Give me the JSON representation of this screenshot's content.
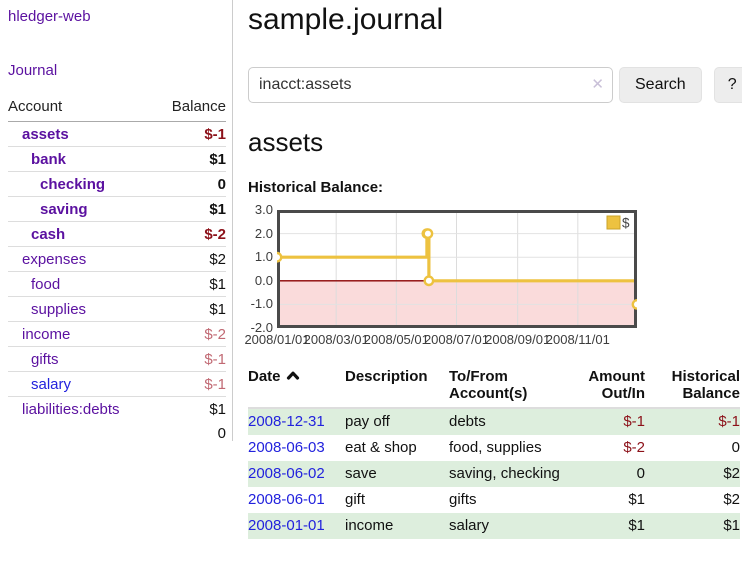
{
  "app": {
    "brand": "hledger-web"
  },
  "sidebar": {
    "journal_link": "Journal",
    "table": {
      "headers": [
        "Account",
        "Balance"
      ],
      "rows": [
        {
          "name": "assets",
          "level": 1,
          "bold": true,
          "balance": "$-1"
        },
        {
          "name": "bank",
          "level": 2,
          "bold": true,
          "balance": "$1"
        },
        {
          "name": "checking",
          "level": 3,
          "bold": true,
          "balance": "0"
        },
        {
          "name": "saving",
          "level": 3,
          "bold": true,
          "balance": "$1"
        },
        {
          "name": "cash",
          "level": 2,
          "bold": true,
          "balance": "$-2"
        },
        {
          "name": "expenses",
          "level": 1,
          "bold": false,
          "balance": "$2"
        },
        {
          "name": "food",
          "level": 2,
          "bold": false,
          "balance": "$1"
        },
        {
          "name": "supplies",
          "level": 2,
          "bold": false,
          "balance": "$1"
        },
        {
          "name": "income",
          "level": 1,
          "bold": false,
          "balance": "$-2"
        },
        {
          "name": "gifts",
          "level": 2,
          "bold": false,
          "balance": "$-1"
        },
        {
          "name": "salary",
          "level": 2,
          "bold": false,
          "balance": "$-1",
          "link": "unvisited"
        },
        {
          "name": "liabilities:debts",
          "level": 1,
          "bold": false,
          "balance": "$1"
        }
      ],
      "total": "0"
    }
  },
  "header": {
    "title": "sample.journal"
  },
  "search": {
    "value": "inacct:assets",
    "clear_icon": "✕",
    "button_label": "Search",
    "help_label": "?"
  },
  "account_page": {
    "title": "assets",
    "chart_label": "Historical Balance:"
  },
  "chart_data": {
    "type": "line",
    "title": "Historical Balance",
    "step": true,
    "points": [
      {
        "date": "2008-01-01",
        "value": 1
      },
      {
        "date": "2008-06-01",
        "value": 2
      },
      {
        "date": "2008-06-02",
        "value": 2
      },
      {
        "date": "2008-06-03",
        "value": 0
      },
      {
        "date": "2008-12-31",
        "value": -1
      }
    ],
    "x_ticks": [
      {
        "label": "2008/01/01",
        "day": 0
      },
      {
        "label": "2008/03/01",
        "day": 60
      },
      {
        "label": "2008/05/01",
        "day": 121
      },
      {
        "label": "2008/07/01",
        "day": 182
      },
      {
        "label": "2008/09/01",
        "day": 244
      },
      {
        "label": "2008/11/01",
        "day": 305
      }
    ],
    "x_range_days": 365,
    "y_ticks": [
      "3.0",
      "2.0",
      "1.0",
      "0.0",
      "-1.0",
      "-2.0"
    ],
    "ylim": [
      -2,
      3
    ],
    "grid": true,
    "negative_region": true,
    "legend": [
      {
        "label": "$",
        "color": "#EDC240"
      }
    ],
    "legend_position": "top-right"
  },
  "register": {
    "headers": [
      {
        "label": "Date",
        "sort": "ascending"
      },
      {
        "label": "Description"
      },
      {
        "label": "To/From Account(s)"
      },
      {
        "label": "Amount Out/In"
      },
      {
        "label": "Historical Balance"
      }
    ],
    "rows": [
      {
        "date": "2008-12-31",
        "description": "pay off",
        "accounts": "debts",
        "amount": "$-1",
        "balance": "$-1",
        "striped": true
      },
      {
        "date": "2008-06-03",
        "description": "eat & shop",
        "accounts": "food, supplies",
        "amount": "$-2",
        "balance": "0",
        "striped": false
      },
      {
        "date": "2008-06-02",
        "description": "save",
        "accounts": "saving, checking",
        "amount": "0",
        "balance": "$2",
        "striped": true
      },
      {
        "date": "2008-06-01",
        "description": "gift",
        "accounts": "gifts",
        "amount": "$1",
        "balance": "$2",
        "striped": false
      },
      {
        "date": "2008-01-01",
        "description": "income",
        "accounts": "salary",
        "amount": "$1",
        "balance": "$1",
        "striped": true
      }
    ]
  },
  "colors": {
    "link_purple": "#5b11a0",
    "link_blue": "#2222dd",
    "negative_strong": "#8c1119",
    "negative_muted": "#c16973",
    "row_stripe_green": "#ddeedd",
    "chart_line_gold": "#EDC240",
    "chart_negative_fill": "#fadbdb",
    "chart_zero_line": "#8b0000",
    "chart_border": "#4a4a4a"
  }
}
